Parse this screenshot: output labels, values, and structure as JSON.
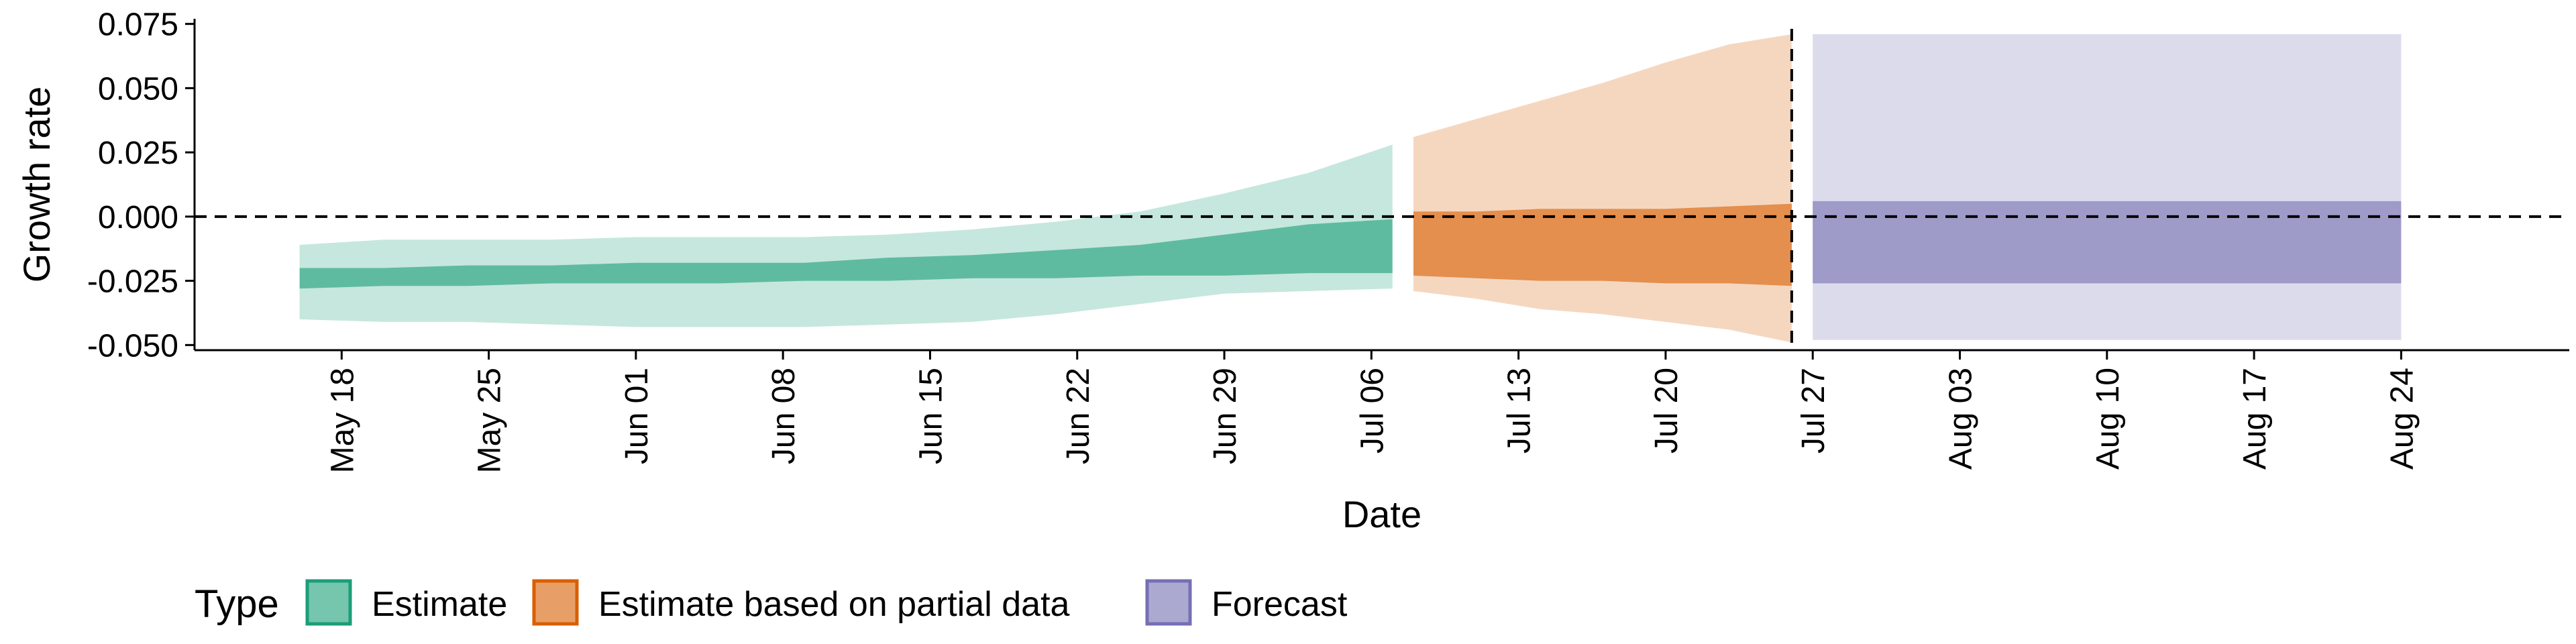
{
  "chart_data": {
    "type": "area",
    "title": "",
    "xlabel": "Date",
    "ylabel": "Growth rate",
    "ylim": [
      -0.052,
      0.077
    ],
    "y_ticks": [
      -0.05,
      -0.025,
      0.0,
      0.025,
      0.05,
      0.075
    ],
    "y_tick_labels": [
      "-0.050",
      "-0.025",
      "0.000",
      "0.025",
      "0.050",
      "0.075"
    ],
    "x_ticks": [
      "2021-05-18",
      "2021-05-25",
      "2021-06-01",
      "2021-06-08",
      "2021-06-15",
      "2021-06-22",
      "2021-06-29",
      "2021-07-06",
      "2021-07-13",
      "2021-07-20",
      "2021-07-27",
      "2021-08-03",
      "2021-08-10",
      "2021-08-17",
      "2021-08-24"
    ],
    "x_tick_labels": [
      "May 18",
      "May 25",
      "Jun 01",
      "Jun 08",
      "Jun 15",
      "Jun 22",
      "Jun 29",
      "Jul 06",
      "Jul 13",
      "Jul 20",
      "Jul 27",
      "Aug 03",
      "Aug 10",
      "Aug 17",
      "Aug 24"
    ],
    "xlim": [
      "2021-05-11",
      "2021-09-01"
    ],
    "reference_lines": {
      "horizontal_y": 0.0,
      "vertical_date": "2021-07-26"
    },
    "legend": {
      "title": "Type",
      "position": "bottom",
      "entries": [
        {
          "label": "Estimate",
          "color": "#1b9e77"
        },
        {
          "label": "Estimate based on partial data",
          "color": "#d95f02"
        },
        {
          "label": "Forecast",
          "color": "#7570b3"
        }
      ]
    },
    "series": [
      {
        "name": "Estimate",
        "color": "#1b9e77",
        "x": [
          "2021-05-16",
          "2021-05-20",
          "2021-05-24",
          "2021-05-28",
          "2021-06-01",
          "2021-06-05",
          "2021-06-09",
          "2021-06-13",
          "2021-06-17",
          "2021-06-21",
          "2021-06-25",
          "2021-06-29",
          "2021-07-03",
          "2021-07-07"
        ],
        "outer_upper": [
          -0.011,
          -0.009,
          -0.009,
          -0.009,
          -0.008,
          -0.008,
          -0.008,
          -0.007,
          -0.005,
          -0.002,
          0.002,
          0.009,
          0.017,
          0.028
        ],
        "inner_upper": [
          -0.02,
          -0.02,
          -0.019,
          -0.019,
          -0.018,
          -0.018,
          -0.018,
          -0.016,
          -0.015,
          -0.013,
          -0.011,
          -0.007,
          -0.003,
          -0.001
        ],
        "inner_lower": [
          -0.028,
          -0.027,
          -0.027,
          -0.026,
          -0.026,
          -0.026,
          -0.025,
          -0.025,
          -0.024,
          -0.024,
          -0.023,
          -0.023,
          -0.022,
          -0.022
        ],
        "outer_lower": [
          -0.04,
          -0.041,
          -0.041,
          -0.042,
          -0.043,
          -0.043,
          -0.043,
          -0.042,
          -0.041,
          -0.038,
          -0.034,
          -0.03,
          -0.029,
          -0.028
        ]
      },
      {
        "name": "Estimate based on partial data",
        "color": "#d95f02",
        "x": [
          "2021-07-08",
          "2021-07-11",
          "2021-07-14",
          "2021-07-17",
          "2021-07-20",
          "2021-07-23",
          "2021-07-26"
        ],
        "outer_upper": [
          0.031,
          0.038,
          0.045,
          0.052,
          0.06,
          0.067,
          0.071
        ],
        "inner_upper": [
          0.002,
          0.002,
          0.003,
          0.003,
          0.003,
          0.004,
          0.005
        ],
        "inner_lower": [
          -0.023,
          -0.024,
          -0.025,
          -0.025,
          -0.026,
          -0.026,
          -0.027
        ],
        "outer_lower": [
          -0.029,
          -0.032,
          -0.036,
          -0.038,
          -0.041,
          -0.044,
          -0.049
        ]
      },
      {
        "name": "Forecast",
        "color": "#7570b3",
        "x": [
          "2021-07-27",
          "2021-08-24"
        ],
        "outer_upper": [
          0.071,
          0.071
        ],
        "inner_upper": [
          0.006,
          0.006
        ],
        "inner_lower": [
          -0.026,
          -0.026
        ],
        "outer_lower": [
          -0.048,
          -0.048
        ]
      }
    ]
  }
}
